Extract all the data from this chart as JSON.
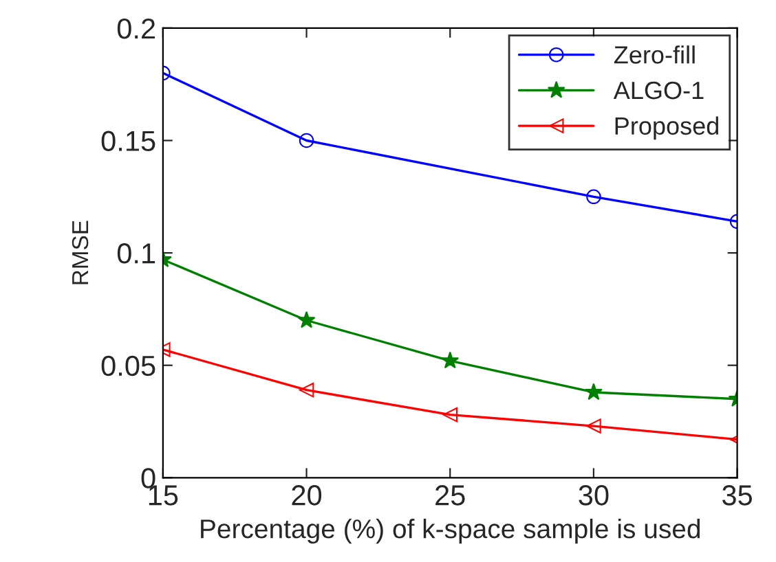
{
  "chart_data": {
    "type": "line",
    "xlabel": "Percentage (%) of k-space sample is used",
    "ylabel": "RMSE",
    "x": [
      15,
      20,
      25,
      30,
      35
    ],
    "series": [
      {
        "name": "Zero-fill",
        "color": "#0000ff",
        "marker": "circle",
        "values": [
          0.18,
          0.15,
          null,
          0.125,
          0.114
        ]
      },
      {
        "name": "ALGO-1",
        "color": "#008000",
        "marker": "star",
        "values": [
          0.097,
          0.07,
          0.052,
          0.038,
          0.035
        ]
      },
      {
        "name": "Proposed",
        "color": "#ff0000",
        "marker": "triangle",
        "values": [
          0.057,
          0.039,
          0.028,
          0.023,
          0.017
        ]
      }
    ],
    "xlim": [
      15,
      35
    ],
    "xticks": [
      15,
      20,
      25,
      30,
      35
    ],
    "ylim": [
      0,
      0.2
    ],
    "yticks": [
      0,
      0.05,
      {
        "value": 0.1,
        "label": "0.1"
      },
      0.15,
      {
        "value": 0.2,
        "label": "0.2"
      }
    ],
    "grid": false,
    "legend": "top right",
    "line_style": "solid"
  }
}
